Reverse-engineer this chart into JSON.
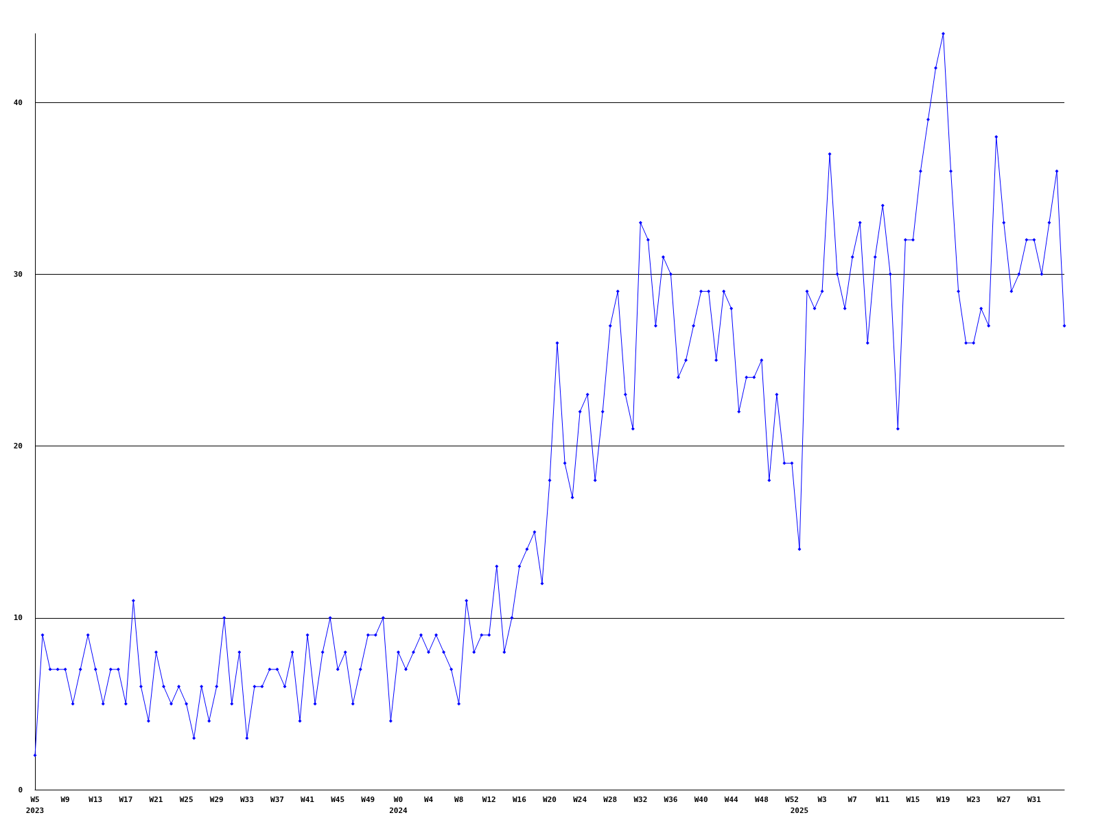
{
  "chart_data": {
    "type": "line",
    "categories": [
      "W5\n2023",
      null,
      null,
      null,
      "W9",
      null,
      null,
      null,
      "W13",
      null,
      null,
      null,
      "W17",
      null,
      null,
      null,
      "W21",
      null,
      null,
      null,
      "W25",
      null,
      null,
      null,
      "W29",
      null,
      null,
      null,
      "W33",
      null,
      null,
      null,
      "W37",
      null,
      null,
      null,
      "W41",
      null,
      null,
      null,
      "W45",
      null,
      null,
      null,
      "W49",
      null,
      null,
      null,
      "W0\n2024",
      null,
      null,
      null,
      "W4",
      null,
      null,
      null,
      "W8",
      null,
      null,
      null,
      "W12",
      null,
      null,
      null,
      "W16",
      null,
      null,
      null,
      "W20",
      null,
      null,
      null,
      "W24",
      null,
      null,
      null,
      "W28",
      null,
      null,
      null,
      "W32",
      null,
      null,
      null,
      "W36",
      null,
      null,
      null,
      "W40",
      null,
      null,
      null,
      "W44",
      null,
      null,
      null,
      "W48",
      null,
      null,
      null,
      "W52",
      "\n2025",
      null,
      null,
      "W3",
      null,
      null,
      null,
      "W7",
      null,
      null,
      null,
      "W11",
      null,
      null,
      null,
      "W15",
      null,
      null,
      null,
      "W19",
      null,
      null,
      null,
      "W23",
      null,
      null,
      null,
      "W27",
      null,
      null,
      null,
      "W31",
      null,
      null,
      null,
      null
    ],
    "series": [
      {
        "color": "#0000ff",
        "values": [
          2,
          9,
          7,
          7,
          7,
          5,
          7,
          9,
          7,
          5,
          7,
          7,
          5,
          11,
          6,
          4,
          8,
          6,
          5,
          6,
          5,
          3,
          6,
          4,
          6,
          10,
          5,
          8,
          3,
          6,
          6,
          7,
          7,
          6,
          8,
          4,
          9,
          5,
          8,
          10,
          7,
          8,
          5,
          7,
          9,
          9,
          10,
          4,
          8,
          7,
          8,
          9,
          8,
          9,
          8,
          7,
          5,
          11,
          8,
          9,
          9,
          13,
          8,
          10,
          13,
          14,
          15,
          12,
          18,
          26,
          19,
          17,
          22,
          23,
          18,
          22,
          27,
          29,
          23,
          21,
          33,
          32,
          27,
          31,
          30,
          24,
          25,
          27,
          29,
          29,
          25,
          29,
          28,
          22,
          24,
          24,
          25,
          18,
          23,
          19,
          19,
          14,
          29,
          28,
          29,
          37,
          30,
          28,
          31,
          33,
          26,
          31,
          34,
          30,
          21,
          32,
          32,
          36,
          39,
          42,
          44,
          36,
          29,
          26,
          26,
          28,
          27,
          38,
          33,
          29,
          30,
          32,
          32,
          30,
          33,
          36,
          27
        ]
      }
    ],
    "ylim": [
      0,
      44
    ],
    "yticks": [
      0,
      10,
      20,
      30,
      40
    ],
    "grid": "y",
    "marker": "diamond",
    "line_style": "solid"
  }
}
